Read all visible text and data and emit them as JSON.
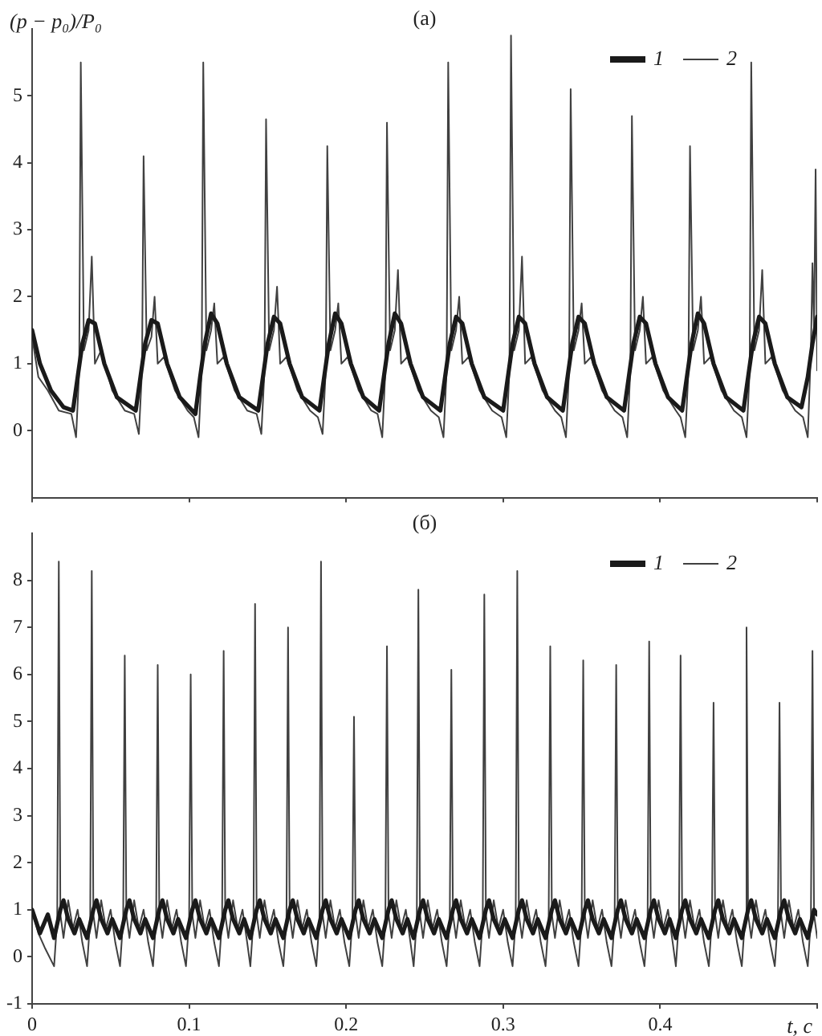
{
  "chart_data": [
    {
      "type": "line",
      "title": "(а)",
      "ylabel": "(p − p₀)/P₀",
      "xlim": [
        0,
        0.5
      ],
      "xticks": [
        0,
        0.1,
        0.2,
        0.3,
        0.4,
        0.5
      ],
      "ylim": [
        -1,
        6
      ],
      "yticks": [
        0,
        1,
        2,
        3,
        4,
        5
      ],
      "tick_labels": "y",
      "grid": false,
      "legend": "top right",
      "marker": "none",
      "line_style": "solid",
      "series": [
        {
          "name": "1",
          "color": "#1a1a1a",
          "x": [
            0,
            0.005,
            0.012,
            0.02,
            0.026,
            0.029,
            0.032,
            0.036,
            0.04,
            0.046,
            0.054,
            0.066,
            0.069,
            0.072,
            0.076,
            0.08,
            0.086,
            0.094,
            0.104,
            0.107,
            0.11,
            0.114,
            0.118,
            0.124,
            0.132,
            0.144,
            0.147,
            0.15,
            0.154,
            0.158,
            0.164,
            0.172,
            0.183,
            0.186,
            0.189,
            0.193,
            0.197,
            0.203,
            0.211,
            0.221,
            0.224,
            0.227,
            0.231,
            0.235,
            0.241,
            0.249,
            0.26,
            0.263,
            0.266,
            0.27,
            0.274,
            0.28,
            0.288,
            0.3,
            0.303,
            0.306,
            0.31,
            0.314,
            0.32,
            0.328,
            0.338,
            0.341,
            0.344,
            0.348,
            0.352,
            0.358,
            0.366,
            0.377,
            0.38,
            0.383,
            0.387,
            0.391,
            0.397,
            0.405,
            0.414,
            0.417,
            0.42,
            0.424,
            0.428,
            0.434,
            0.442,
            0.453,
            0.456,
            0.459,
            0.463,
            0.467,
            0.473,
            0.481,
            0.49,
            0.494,
            0.497,
            0.5
          ],
          "values": [
            1.5,
            1.0,
            0.6,
            0.35,
            0.3,
            0.8,
            1.3,
            1.65,
            1.6,
            1.0,
            0.5,
            0.3,
            0.8,
            1.3,
            1.65,
            1.6,
            1.0,
            0.5,
            0.25,
            0.8,
            1.3,
            1.75,
            1.6,
            1.0,
            0.5,
            0.3,
            0.8,
            1.3,
            1.7,
            1.6,
            1.0,
            0.5,
            0.3,
            0.8,
            1.3,
            1.75,
            1.6,
            1.0,
            0.5,
            0.3,
            0.8,
            1.3,
            1.75,
            1.6,
            1.0,
            0.5,
            0.3,
            0.8,
            1.3,
            1.7,
            1.6,
            1.0,
            0.5,
            0.3,
            0.8,
            1.3,
            1.7,
            1.6,
            1.0,
            0.5,
            0.3,
            0.8,
            1.3,
            1.7,
            1.6,
            1.0,
            0.5,
            0.3,
            0.8,
            1.3,
            1.7,
            1.6,
            1.0,
            0.5,
            0.3,
            0.8,
            1.3,
            1.75,
            1.6,
            1.0,
            0.5,
            0.3,
            0.8,
            1.3,
            1.7,
            1.6,
            1.0,
            0.5,
            0.35,
            0.8,
            1.3,
            1.7
          ]
        },
        {
          "name": "2",
          "color": "#404040",
          "x": [
            0,
            0.004,
            0.01,
            0.017,
            0.025,
            0.028,
            0.03,
            0.031,
            0.033,
            0.036,
            0.038,
            0.04,
            0.044,
            0.051,
            0.059,
            0.065,
            0.068,
            0.07,
            0.071,
            0.073,
            0.076,
            0.078,
            0.08,
            0.084,
            0.091,
            0.099,
            0.103,
            0.106,
            0.108,
            0.109,
            0.111,
            0.114,
            0.116,
            0.118,
            0.122,
            0.129,
            0.137,
            0.143,
            0.146,
            0.148,
            0.149,
            0.151,
            0.154,
            0.156,
            0.158,
            0.162,
            0.169,
            0.177,
            0.182,
            0.185,
            0.187,
            0.188,
            0.19,
            0.193,
            0.195,
            0.197,
            0.201,
            0.208,
            0.216,
            0.22,
            0.223,
            0.225,
            0.226,
            0.228,
            0.231,
            0.233,
            0.235,
            0.239,
            0.246,
            0.254,
            0.259,
            0.262,
            0.264,
            0.265,
            0.267,
            0.27,
            0.272,
            0.274,
            0.278,
            0.285,
            0.293,
            0.299,
            0.302,
            0.304,
            0.305,
            0.307,
            0.31,
            0.312,
            0.314,
            0.318,
            0.325,
            0.333,
            0.337,
            0.34,
            0.342,
            0.343,
            0.345,
            0.348,
            0.35,
            0.352,
            0.356,
            0.363,
            0.371,
            0.376,
            0.379,
            0.381,
            0.382,
            0.384,
            0.387,
            0.389,
            0.391,
            0.395,
            0.402,
            0.41,
            0.413,
            0.416,
            0.418,
            0.419,
            0.421,
            0.424,
            0.426,
            0.428,
            0.432,
            0.439,
            0.447,
            0.452,
            0.455,
            0.457,
            0.458,
            0.46,
            0.463,
            0.465,
            0.467,
            0.471,
            0.478,
            0.486,
            0.491,
            0.494,
            0.496,
            0.497,
            0.498,
            0.499,
            0.5
          ],
          "values": [
            1.4,
            0.8,
            0.6,
            0.3,
            0.25,
            -0.1,
            0.9,
            5.5,
            1.2,
            1.5,
            2.6,
            1.0,
            1.2,
            0.6,
            0.3,
            0.25,
            -0.05,
            0.9,
            4.1,
            1.2,
            1.4,
            2.0,
            1.0,
            1.1,
            0.6,
            0.3,
            0.2,
            -0.1,
            0.9,
            5.5,
            1.2,
            1.5,
            1.9,
            1.0,
            1.1,
            0.6,
            0.3,
            0.25,
            -0.05,
            0.9,
            4.65,
            1.2,
            1.5,
            2.15,
            1.0,
            1.1,
            0.6,
            0.3,
            0.2,
            -0.05,
            0.9,
            4.25,
            1.2,
            1.5,
            1.9,
            1.0,
            1.1,
            0.6,
            0.3,
            0.25,
            -0.1,
            0.9,
            4.6,
            1.2,
            1.5,
            2.4,
            1.0,
            1.1,
            0.6,
            0.3,
            0.2,
            -0.1,
            0.9,
            5.5,
            1.2,
            1.5,
            2.0,
            1.0,
            1.1,
            0.6,
            0.3,
            0.2,
            -0.1,
            0.9,
            5.9,
            1.2,
            1.5,
            2.6,
            1.0,
            1.1,
            0.6,
            0.3,
            0.2,
            -0.1,
            0.9,
            5.1,
            1.2,
            1.5,
            1.9,
            1.0,
            1.1,
            0.6,
            0.3,
            0.2,
            -0.1,
            0.9,
            4.7,
            1.2,
            1.5,
            2.0,
            1.0,
            1.1,
            0.6,
            0.3,
            0.2,
            -0.1,
            0.9,
            4.25,
            1.2,
            1.5,
            2.0,
            1.0,
            1.1,
            0.6,
            0.3,
            0.2,
            -0.1,
            0.9,
            5.5,
            1.2,
            1.5,
            2.4,
            1.0,
            1.1,
            0.6,
            0.3,
            0.2,
            -0.1,
            1.2,
            2.5,
            1.5,
            3.9,
            0.9
          ]
        }
      ]
    },
    {
      "type": "line",
      "title": "(б)",
      "xlabel": "t, с",
      "xlim": [
        0,
        0.5
      ],
      "xticks": [
        0,
        0.1,
        0.2,
        0.3,
        0.4,
        {
          "value": 0.5,
          "label": null
        }
      ],
      "ylim": [
        -1,
        9
      ],
      "yticks": [
        -1,
        0,
        1,
        2,
        3,
        4,
        5,
        6,
        7,
        8
      ],
      "grid": false,
      "legend": "top right",
      "marker": "none",
      "line_style": "solid",
      "series": [
        {
          "name": "1",
          "color": "#1a1a1a",
          "x": [
            0,
            0.005,
            0.01,
            0.014,
            0.018,
            0.02,
            0.023,
            0.027,
            0.03,
            0.035,
            0.039,
            0.041,
            0.044,
            0.048,
            0.051,
            0.056,
            0.06,
            0.062,
            0.065,
            0.069,
            0.072,
            0.077,
            0.081,
            0.083,
            0.086,
            0.09,
            0.093,
            0.098,
            0.102,
            0.104,
            0.107,
            0.111,
            0.114,
            0.119,
            0.123,
            0.125,
            0.128,
            0.132,
            0.135,
            0.139,
            0.143,
            0.145,
            0.148,
            0.152,
            0.155,
            0.16,
            0.164,
            0.166,
            0.169,
            0.173,
            0.176,
            0.181,
            0.185,
            0.187,
            0.19,
            0.194,
            0.197,
            0.202,
            0.206,
            0.208,
            0.211,
            0.215,
            0.218,
            0.223,
            0.227,
            0.229,
            0.232,
            0.236,
            0.239,
            0.243,
            0.247,
            0.249,
            0.252,
            0.256,
            0.259,
            0.264,
            0.268,
            0.27,
            0.273,
            0.277,
            0.28,
            0.285,
            0.289,
            0.291,
            0.294,
            0.298,
            0.301,
            0.306,
            0.31,
            0.312,
            0.315,
            0.319,
            0.322,
            0.327,
            0.331,
            0.333,
            0.336,
            0.34,
            0.343,
            0.348,
            0.352,
            0.354,
            0.357,
            0.361,
            0.364,
            0.369,
            0.373,
            0.375,
            0.378,
            0.382,
            0.385,
            0.39,
            0.394,
            0.396,
            0.399,
            0.403,
            0.406,
            0.41,
            0.414,
            0.416,
            0.419,
            0.423,
            0.426,
            0.431,
            0.435,
            0.437,
            0.44,
            0.444,
            0.447,
            0.452,
            0.456,
            0.458,
            0.461,
            0.465,
            0.468,
            0.473,
            0.477,
            0.479,
            0.482,
            0.486,
            0.489,
            0.494,
            0.498,
            0.5
          ],
          "values": [
            1.0,
            0.5,
            0.9,
            0.4,
            1.0,
            1.2,
            0.8,
            0.5,
            0.8,
            0.4,
            1.0,
            1.2,
            0.8,
            0.5,
            0.8,
            0.4,
            1.0,
            1.2,
            0.8,
            0.5,
            0.8,
            0.4,
            1.0,
            1.2,
            0.8,
            0.5,
            0.8,
            0.4,
            1.0,
            1.2,
            0.8,
            0.5,
            0.8,
            0.4,
            1.0,
            1.2,
            0.8,
            0.5,
            0.8,
            0.4,
            1.0,
            1.2,
            0.8,
            0.5,
            0.8,
            0.4,
            1.0,
            1.2,
            0.8,
            0.5,
            0.8,
            0.4,
            1.0,
            1.2,
            0.8,
            0.5,
            0.8,
            0.4,
            1.0,
            1.2,
            0.8,
            0.5,
            0.8,
            0.4,
            1.0,
            1.2,
            0.8,
            0.5,
            0.8,
            0.4,
            1.0,
            1.2,
            0.8,
            0.5,
            0.8,
            0.4,
            1.0,
            1.2,
            0.8,
            0.5,
            0.8,
            0.4,
            1.0,
            1.2,
            0.8,
            0.5,
            0.8,
            0.4,
            1.0,
            1.2,
            0.8,
            0.5,
            0.8,
            0.4,
            1.0,
            1.2,
            0.8,
            0.5,
            0.8,
            0.4,
            1.0,
            1.2,
            0.8,
            0.5,
            0.8,
            0.4,
            1.0,
            1.2,
            0.8,
            0.5,
            0.8,
            0.4,
            1.0,
            1.2,
            0.8,
            0.5,
            0.8,
            0.4,
            1.0,
            1.2,
            0.8,
            0.5,
            0.8,
            0.4,
            1.0,
            1.2,
            0.8,
            0.5,
            0.8,
            0.4,
            1.0,
            1.2,
            0.8,
            0.5,
            0.8,
            0.4,
            1.0,
            1.2,
            0.8,
            0.5,
            0.8,
            0.4,
            1.0,
            0.9
          ]
        },
        {
          "name": "2",
          "color": "#404040",
          "x": [
            0,
            0.004,
            0.008,
            0.014,
            0.016,
            0.017,
            0.018,
            0.02,
            0.023,
            0.026,
            0.029,
            0.032,
            0.035,
            0.037,
            0.038,
            0.039,
            0.041,
            0.044,
            0.047,
            0.05,
            0.053,
            0.056,
            0.058,
            0.059,
            0.06,
            0.062,
            0.065,
            0.068,
            0.071,
            0.074,
            0.077,
            0.079,
            0.08,
            0.081,
            0.083,
            0.086,
            0.089,
            0.092,
            0.095,
            0.098,
            0.1,
            0.101,
            0.102,
            0.104,
            0.107,
            0.11,
            0.113,
            0.116,
            0.119,
            0.121,
            0.122,
            0.123,
            0.125,
            0.128,
            0.131,
            0.134,
            0.137,
            0.139,
            0.141,
            0.142,
            0.143,
            0.145,
            0.148,
            0.151,
            0.154,
            0.157,
            0.16,
            0.162,
            0.163,
            0.164,
            0.166,
            0.169,
            0.172,
            0.175,
            0.178,
            0.181,
            0.183,
            0.184,
            0.185,
            0.187,
            0.19,
            0.193,
            0.196,
            0.199,
            0.202,
            0.204,
            0.205,
            0.206,
            0.208,
            0.211,
            0.214,
            0.217,
            0.22,
            0.223,
            0.225,
            0.226,
            0.227,
            0.229,
            0.232,
            0.235,
            0.238,
            0.241,
            0.243,
            0.245,
            0.246,
            0.247,
            0.249,
            0.252,
            0.255,
            0.258,
            0.261,
            0.264,
            0.266,
            0.267,
            0.268,
            0.27,
            0.273,
            0.276,
            0.279,
            0.282,
            0.285,
            0.287,
            0.288,
            0.289,
            0.291,
            0.294,
            0.297,
            0.3,
            0.303,
            0.306,
            0.308,
            0.309,
            0.31,
            0.312,
            0.315,
            0.318,
            0.321,
            0.324,
            0.327,
            0.329,
            0.33,
            0.331,
            0.333,
            0.336,
            0.339,
            0.342,
            0.345,
            0.348,
            0.35,
            0.351,
            0.352,
            0.354,
            0.357,
            0.36,
            0.363,
            0.366,
            0.369,
            0.371,
            0.372,
            0.373,
            0.375,
            0.378,
            0.381,
            0.384,
            0.387,
            0.39,
            0.392,
            0.393,
            0.394,
            0.396,
            0.399,
            0.402,
            0.405,
            0.408,
            0.41,
            0.412,
            0.413,
            0.414,
            0.416,
            0.419,
            0.422,
            0.425,
            0.428,
            0.431,
            0.433,
            0.434,
            0.435,
            0.437,
            0.44,
            0.443,
            0.446,
            0.449,
            0.452,
            0.454,
            0.455,
            0.456,
            0.458,
            0.461,
            0.464,
            0.467,
            0.47,
            0.473,
            0.475,
            0.476,
            0.477,
            0.479,
            0.482,
            0.485,
            0.488,
            0.491,
            0.494,
            0.496,
            0.497,
            0.498,
            0.5
          ],
          "values": [
            1.0,
            0.5,
            0.2,
            -0.2,
            0.8,
            8.4,
            0.9,
            0.4,
            1.2,
            0.6,
            1.0,
            0.3,
            -0.2,
            0.8,
            8.2,
            0.9,
            0.4,
            1.2,
            0.6,
            1.0,
            0.3,
            -0.2,
            0.8,
            6.4,
            0.9,
            0.4,
            1.2,
            0.6,
            1.0,
            0.3,
            -0.2,
            0.8,
            6.2,
            0.9,
            0.4,
            1.2,
            0.6,
            1.0,
            0.3,
            -0.2,
            0.8,
            6.0,
            0.9,
            0.4,
            1.2,
            0.6,
            1.0,
            0.3,
            -0.2,
            0.8,
            6.5,
            0.9,
            0.4,
            1.2,
            0.6,
            1.0,
            0.3,
            -0.2,
            0.8,
            7.5,
            0.9,
            0.4,
            1.2,
            0.6,
            1.0,
            0.3,
            -0.2,
            0.8,
            7.0,
            0.9,
            0.4,
            1.2,
            0.6,
            1.0,
            0.3,
            -0.2,
            0.8,
            8.4,
            0.9,
            0.4,
            1.2,
            0.6,
            1.0,
            0.3,
            -0.2,
            0.8,
            5.1,
            0.9,
            0.4,
            1.2,
            0.6,
            1.0,
            0.3,
            -0.2,
            0.8,
            6.6,
            0.9,
            0.4,
            1.2,
            0.6,
            1.0,
            0.3,
            -0.2,
            0.8,
            7.8,
            0.9,
            0.4,
            1.2,
            0.6,
            1.0,
            0.3,
            -0.2,
            0.8,
            6.1,
            0.9,
            0.4,
            1.2,
            0.6,
            1.0,
            0.3,
            -0.2,
            0.8,
            7.7,
            0.9,
            0.4,
            1.2,
            0.6,
            1.0,
            0.3,
            -0.2,
            0.8,
            8.2,
            0.9,
            0.4,
            1.2,
            0.6,
            1.0,
            0.3,
            -0.2,
            0.8,
            6.6,
            0.9,
            0.4,
            1.2,
            0.6,
            1.0,
            0.3,
            -0.2,
            0.8,
            6.3,
            0.9,
            0.4,
            1.2,
            0.6,
            1.0,
            0.3,
            -0.2,
            0.8,
            6.2,
            0.9,
            0.4,
            1.2,
            0.6,
            1.0,
            0.3,
            -0.2,
            0.8,
            6.7,
            0.9,
            0.4,
            1.2,
            0.6,
            1.0,
            0.3,
            -0.2,
            0.8,
            6.4,
            0.9,
            0.4,
            1.2,
            0.6,
            1.0,
            0.3,
            -0.2,
            0.8,
            5.4,
            0.9,
            0.4,
            1.2,
            0.6,
            1.0,
            0.3,
            -0.2,
            0.8,
            7.0,
            0.9,
            0.4,
            1.2,
            0.6,
            1.0,
            0.3,
            -0.2,
            0.8,
            5.4,
            0.9,
            0.4,
            1.2,
            0.6,
            1.0,
            0.3,
            -0.2,
            0.8,
            6.5,
            0.9,
            0.4
          ]
        }
      ]
    }
  ]
}
